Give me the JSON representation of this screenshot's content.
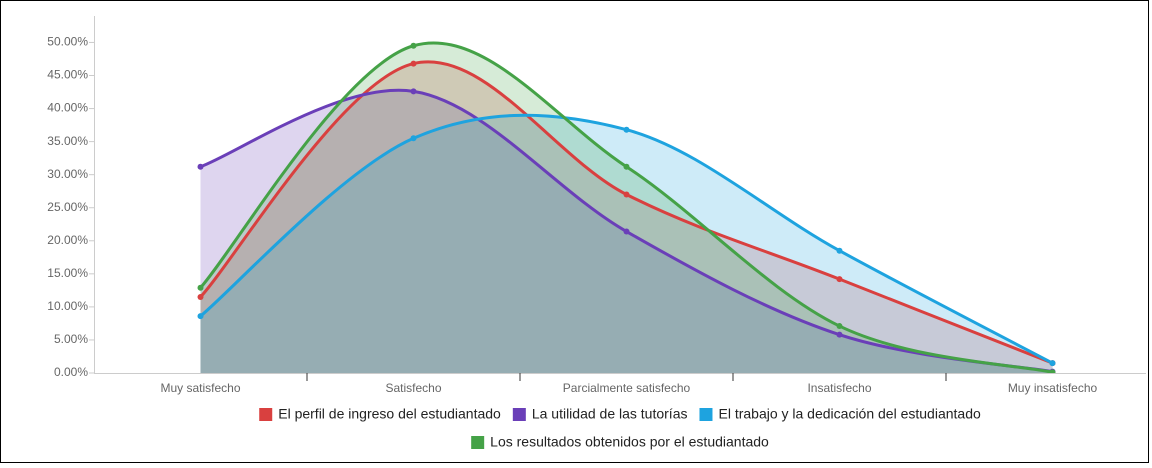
{
  "chart_data": {
    "type": "areaspline",
    "categories": [
      "Muy satisfecho",
      "Satisfecho",
      "Parcialmente satisfecho",
      "Insatisfecho",
      "Muy insatisfecho"
    ],
    "series": [
      {
        "name": "El perfil de ingreso del estudiantado",
        "color": "#d9403f",
        "values": [
          11.5,
          46.8,
          27.0,
          14.2,
          1.5
        ]
      },
      {
        "name": "La utilidad de las tutorías",
        "color": "#6a3fb8",
        "values": [
          31.2,
          42.6,
          21.4,
          5.8,
          0.2
        ]
      },
      {
        "name": "El trabajo y la dedicación del estudiantado",
        "color": "#1ea3df",
        "values": [
          8.6,
          35.5,
          36.8,
          18.5,
          1.5
        ]
      },
      {
        "name": "Los resultados obtenidos por el estudiantado",
        "color": "#45a247",
        "values": [
          12.9,
          49.5,
          31.2,
          7.1,
          0.1
        ]
      }
    ],
    "ylim": [
      0,
      54
    ],
    "yticks": [
      {
        "value": 0,
        "label": "0.00%"
      },
      {
        "value": 5,
        "label": "5.00%"
      },
      {
        "value": 10,
        "label": "10.00%"
      },
      {
        "value": 15,
        "label": "15.00%"
      },
      {
        "value": 20,
        "label": "20.00%"
      },
      {
        "value": 25,
        "label": "25.00%"
      },
      {
        "value": 30,
        "label": "30.00%"
      },
      {
        "value": 35,
        "label": "35.00%"
      },
      {
        "value": 40,
        "label": "40.00%"
      },
      {
        "value": 45,
        "label": "45.00%"
      },
      {
        "value": 50,
        "label": "50.00%"
      }
    ],
    "legend": "bottom"
  }
}
